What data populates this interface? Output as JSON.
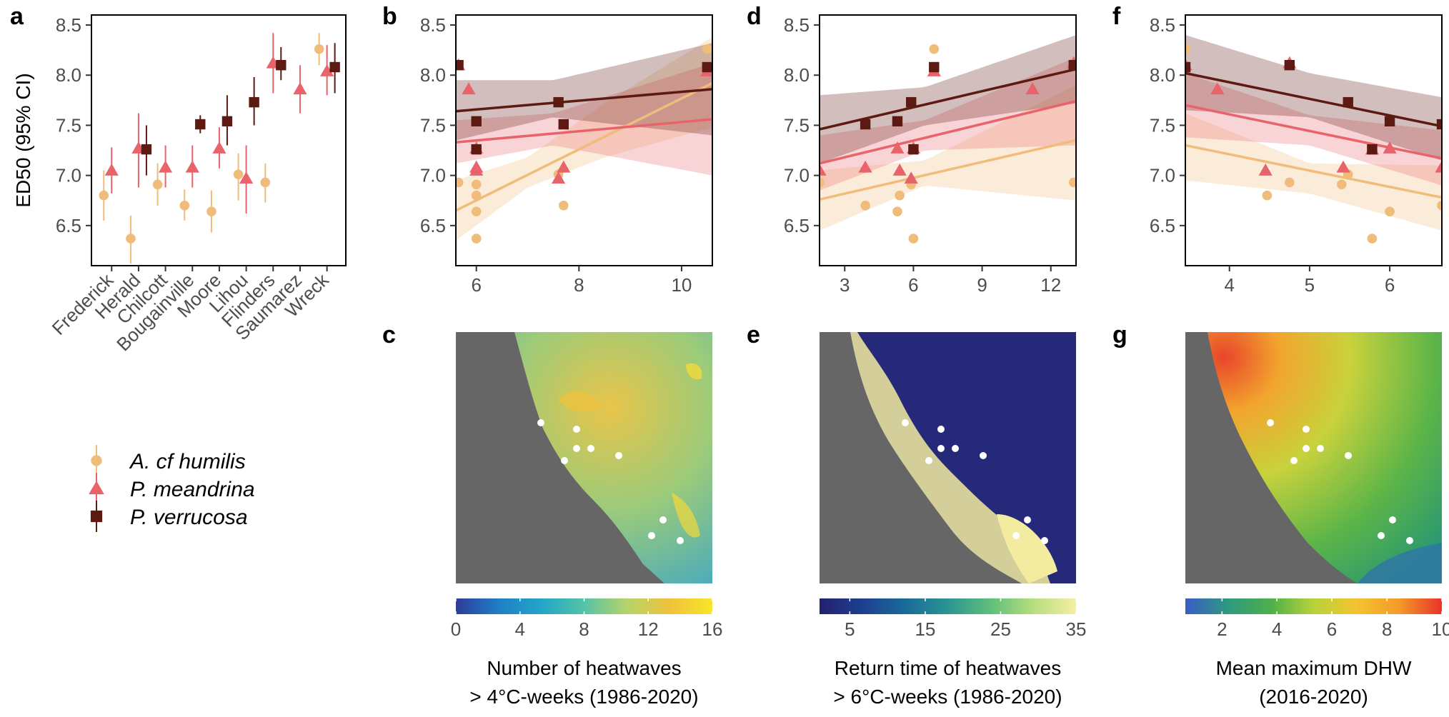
{
  "species": [
    {
      "name": "A. cf humilis",
      "color": "#F0BC7A",
      "marker": "circle"
    },
    {
      "name": "P. meandrina",
      "color": "#E8636A",
      "marker": "triangle"
    },
    {
      "name": "P. verrucosa",
      "color": "#5C1A12",
      "marker": "square"
    }
  ],
  "panel_labels": {
    "a": "a",
    "b": "b",
    "c": "c",
    "d": "d",
    "e": "e",
    "f": "f",
    "g": "g"
  },
  "colorbars": {
    "c": {
      "title_line1": "Number of heatwaves",
      "title_line2": "> 4°C-weeks (1986-2020)",
      "ticks": [
        "0",
        "4",
        "8",
        "12",
        "16"
      ],
      "colors": [
        "#2E3C99",
        "#1F7FC4",
        "#22A6C9",
        "#55C3A6",
        "#B6D36A",
        "#F0C23A",
        "#F7E62A"
      ]
    },
    "e": {
      "title_line1": "Return time of heatwaves",
      "title_line2": "> 6°C-weeks (1986-2020)",
      "ticks": [
        "5",
        "15",
        "25",
        "35"
      ],
      "colors": [
        "#232170",
        "#1E3F8F",
        "#1A6A9A",
        "#2A9592",
        "#5FBF7A",
        "#B6DE7D",
        "#F6EEA4"
      ]
    },
    "g": {
      "title_line1": "Mean maximum DHW",
      "title_line2": "(2016-2020)",
      "ticks": [
        "2",
        "4",
        "6",
        "8",
        "10"
      ],
      "colors": [
        "#3A5BC8",
        "#2F9A7E",
        "#4DB04A",
        "#B8D23A",
        "#F4C430",
        "#F39A2A",
        "#E8332A"
      ]
    }
  },
  "chart_data": [
    {
      "panel": "a",
      "type": "scatter",
      "ylabel": "ED50 (95% CI)",
      "ylim": [
        6.1,
        8.6
      ],
      "yticks": [
        "6.5",
        "7.0",
        "7.5",
        "8.0",
        "8.5"
      ],
      "categories": [
        "Frederick",
        "Herald",
        "Chilcott",
        "Bougainville",
        "Moore",
        "Lihou",
        "Flinders",
        "Saumarez",
        "Wreck"
      ],
      "series": [
        {
          "name": "A. cf humilis",
          "values": [
            6.8,
            6.37,
            6.91,
            6.7,
            6.64,
            7.01,
            6.93,
            null,
            8.26
          ],
          "ci_low": [
            6.55,
            6.12,
            6.7,
            6.55,
            6.43,
            6.75,
            6.73,
            null,
            8.1
          ],
          "ci_high": [
            7.05,
            6.6,
            7.12,
            6.86,
            6.85,
            7.22,
            7.12,
            null,
            8.42
          ]
        },
        {
          "name": "P. meandrina",
          "values": [
            7.05,
            7.27,
            7.08,
            7.08,
            7.27,
            6.97,
            8.12,
            7.86,
            8.04
          ],
          "ci_low": [
            6.82,
            6.88,
            6.88,
            6.88,
            7.07,
            6.62,
            7.82,
            7.62,
            7.8
          ],
          "ci_high": [
            7.28,
            7.62,
            7.3,
            7.3,
            7.48,
            7.3,
            8.42,
            8.1,
            8.3
          ]
        },
        {
          "name": "P. verrucosa",
          "values": [
            null,
            7.26,
            null,
            7.51,
            7.54,
            7.73,
            8.1,
            null,
            8.08
          ],
          "ci_low": [
            null,
            7.0,
            null,
            7.42,
            7.3,
            7.5,
            7.95,
            null,
            7.82
          ],
          "ci_high": [
            null,
            7.5,
            null,
            7.6,
            7.8,
            7.98,
            8.28,
            null,
            8.32
          ]
        }
      ]
    },
    {
      "panel": "b",
      "type": "scatter",
      "xlim": [
        5.6,
        10.6
      ],
      "ylim": [
        6.1,
        8.6
      ],
      "xticks": [
        "6",
        "8",
        "10"
      ],
      "yticks": [
        "6.5",
        "7.0",
        "7.5",
        "8.0",
        "8.5"
      ],
      "series": [
        {
          "name": "A. cf humilis",
          "points": [
            [
              5.65,
              6.93
            ],
            [
              6.0,
              6.37
            ],
            [
              6.0,
              6.64
            ],
            [
              6.0,
              6.8
            ],
            [
              6.0,
              6.91
            ],
            [
              7.6,
              7.01
            ],
            [
              7.7,
              6.7
            ],
            [
              10.5,
              8.26
            ]
          ],
          "fit": [
            [
              5.6,
              6.65
            ],
            [
              10.6,
              7.92
            ]
          ],
          "band_low": [
            [
              5.6,
              6.35
            ],
            [
              7.0,
              6.88
            ],
            [
              8.5,
              7.18
            ],
            [
              10.6,
              7.48
            ]
          ],
          "band_high": [
            [
              5.6,
              6.95
            ],
            [
              7.0,
              7.18
            ],
            [
              8.5,
              7.72
            ],
            [
              10.6,
              8.38
            ]
          ]
        },
        {
          "name": "P. meandrina",
          "points": [
            [
              5.65,
              8.1
            ],
            [
              5.85,
              7.86
            ],
            [
              6.0,
              7.27
            ],
            [
              6.0,
              7.08
            ],
            [
              6.0,
              7.05
            ],
            [
              7.6,
              6.97
            ],
            [
              7.7,
              7.08
            ],
            [
              10.5,
              8.04
            ]
          ],
          "fit": [
            [
              5.6,
              7.33
            ],
            [
              10.6,
              7.56
            ]
          ],
          "band_low": [
            [
              5.6,
              7.12
            ],
            [
              7.5,
              7.3
            ],
            [
              10.6,
              7.0
            ]
          ],
          "band_high": [
            [
              5.6,
              7.55
            ],
            [
              7.5,
              7.62
            ],
            [
              10.6,
              8.12
            ]
          ]
        },
        {
          "name": "P. verrucosa",
          "points": [
            [
              5.65,
              8.1
            ],
            [
              6.0,
              7.54
            ],
            [
              6.0,
              7.26
            ],
            [
              7.6,
              7.73
            ],
            [
              7.7,
              7.51
            ],
            [
              10.5,
              8.08
            ]
          ],
          "fit": [
            [
              5.6,
              7.64
            ],
            [
              10.6,
              7.86
            ]
          ],
          "band_low": [
            [
              5.6,
              7.35
            ],
            [
              7.5,
              7.58
            ],
            [
              10.6,
              7.4
            ]
          ],
          "band_high": [
            [
              5.6,
              7.95
            ],
            [
              7.5,
              7.95
            ],
            [
              10.6,
              8.32
            ]
          ]
        }
      ]
    },
    {
      "panel": "d",
      "type": "scatter",
      "xlim": [
        1.9,
        13.1
      ],
      "ylim": [
        6.1,
        8.6
      ],
      "xticks": [
        "3",
        "6",
        "9",
        "12"
      ],
      "yticks": [
        "6.5",
        "7.0",
        "7.5",
        "8.0",
        "8.5"
      ],
      "series": [
        {
          "name": "A. cf humilis",
          "points": [
            [
              1.9,
              6.93
            ],
            [
              3.9,
              6.7
            ],
            [
              5.3,
              6.64
            ],
            [
              5.4,
              6.8
            ],
            [
              5.9,
              6.91
            ],
            [
              6.0,
              6.37
            ],
            [
              6.9,
              8.26
            ],
            [
              13.0,
              6.93
            ]
          ],
          "fit": [
            [
              1.9,
              6.76
            ],
            [
              13.1,
              7.35
            ]
          ],
          "band_low": [
            [
              1.9,
              6.45
            ],
            [
              6.5,
              6.9
            ],
            [
              13.1,
              6.75
            ]
          ],
          "band_high": [
            [
              1.9,
              7.05
            ],
            [
              6.5,
              7.15
            ],
            [
              13.1,
              7.9
            ]
          ]
        },
        {
          "name": "P. meandrina",
          "points": [
            [
              1.9,
              7.05
            ],
            [
              3.9,
              7.08
            ],
            [
              5.3,
              7.27
            ],
            [
              5.4,
              7.05
            ],
            [
              5.9,
              6.97
            ],
            [
              6.0,
              7.27
            ],
            [
              6.9,
              8.04
            ],
            [
              11.2,
              7.86
            ],
            [
              13.0,
              8.12
            ]
          ],
          "fit": [
            [
              1.9,
              7.12
            ],
            [
              13.1,
              7.74
            ]
          ],
          "band_low": [
            [
              1.9,
              6.85
            ],
            [
              6.5,
              7.25
            ],
            [
              13.1,
              7.3
            ]
          ],
          "band_high": [
            [
              1.9,
              7.4
            ],
            [
              6.5,
              7.55
            ],
            [
              13.1,
              8.18
            ]
          ]
        },
        {
          "name": "P. verrucosa",
          "points": [
            [
              3.9,
              7.51
            ],
            [
              5.3,
              7.54
            ],
            [
              5.9,
              7.73
            ],
            [
              6.0,
              7.26
            ],
            [
              6.9,
              8.08
            ],
            [
              13.0,
              8.1
            ]
          ],
          "fit": [
            [
              1.9,
              7.46
            ],
            [
              13.1,
              8.06
            ]
          ],
          "band_low": [
            [
              1.9,
              7.12
            ],
            [
              6.5,
              7.5
            ],
            [
              13.1,
              7.72
            ]
          ],
          "band_high": [
            [
              1.9,
              7.8
            ],
            [
              6.5,
              7.88
            ],
            [
              13.1,
              8.4
            ]
          ]
        }
      ]
    },
    {
      "panel": "f",
      "type": "scatter",
      "xlim": [
        3.45,
        6.65
      ],
      "ylim": [
        6.1,
        8.6
      ],
      "xticks": [
        "4",
        "5",
        "6"
      ],
      "yticks": [
        "6.5",
        "7.0",
        "7.5",
        "8.0",
        "8.5"
      ],
      "series": [
        {
          "name": "A. cf humilis",
          "points": [
            [
              3.45,
              8.26
            ],
            [
              4.47,
              6.8
            ],
            [
              4.75,
              6.93
            ],
            [
              5.4,
              6.91
            ],
            [
              5.48,
              7.01
            ],
            [
              5.78,
              6.37
            ],
            [
              6.0,
              6.64
            ],
            [
              6.65,
              6.7
            ]
          ],
          "fit": [
            [
              3.45,
              7.3
            ],
            [
              6.65,
              6.78
            ]
          ],
          "band_low": [
            [
              3.45,
              6.95
            ],
            [
              5.0,
              6.82
            ],
            [
              6.65,
              6.45
            ]
          ],
          "band_high": [
            [
              3.45,
              7.62
            ],
            [
              5.0,
              7.12
            ],
            [
              6.65,
              7.1
            ]
          ]
        },
        {
          "name": "P. meandrina",
          "points": [
            [
              3.45,
              8.1
            ],
            [
              3.85,
              7.86
            ],
            [
              4.45,
              7.05
            ],
            [
              4.75,
              8.12
            ],
            [
              5.42,
              7.08
            ],
            [
              5.78,
              7.26
            ],
            [
              6.0,
              7.27
            ],
            [
              6.65,
              7.08
            ]
          ],
          "fit": [
            [
              3.45,
              7.7
            ],
            [
              6.65,
              7.17
            ]
          ],
          "band_low": [
            [
              3.45,
              7.38
            ],
            [
              5.0,
              7.3
            ],
            [
              6.65,
              6.9
            ]
          ],
          "band_high": [
            [
              3.45,
              8.02
            ],
            [
              5.0,
              7.6
            ],
            [
              6.65,
              7.45
            ]
          ]
        },
        {
          "name": "P. verrucosa",
          "points": [
            [
              3.45,
              8.08
            ],
            [
              4.75,
              8.1
            ],
            [
              5.48,
              7.73
            ],
            [
              5.78,
              7.26
            ],
            [
              6.0,
              7.54
            ],
            [
              6.65,
              7.51
            ]
          ],
          "fit": [
            [
              3.45,
              8.02
            ],
            [
              6.65,
              7.49
            ]
          ],
          "band_low": [
            [
              3.45,
              7.65
            ],
            [
              5.0,
              7.58
            ],
            [
              6.65,
              7.15
            ]
          ],
          "band_high": [
            [
              3.45,
              8.4
            ],
            [
              5.0,
              8.02
            ],
            [
              6.65,
              7.78
            ]
          ]
        }
      ]
    }
  ]
}
